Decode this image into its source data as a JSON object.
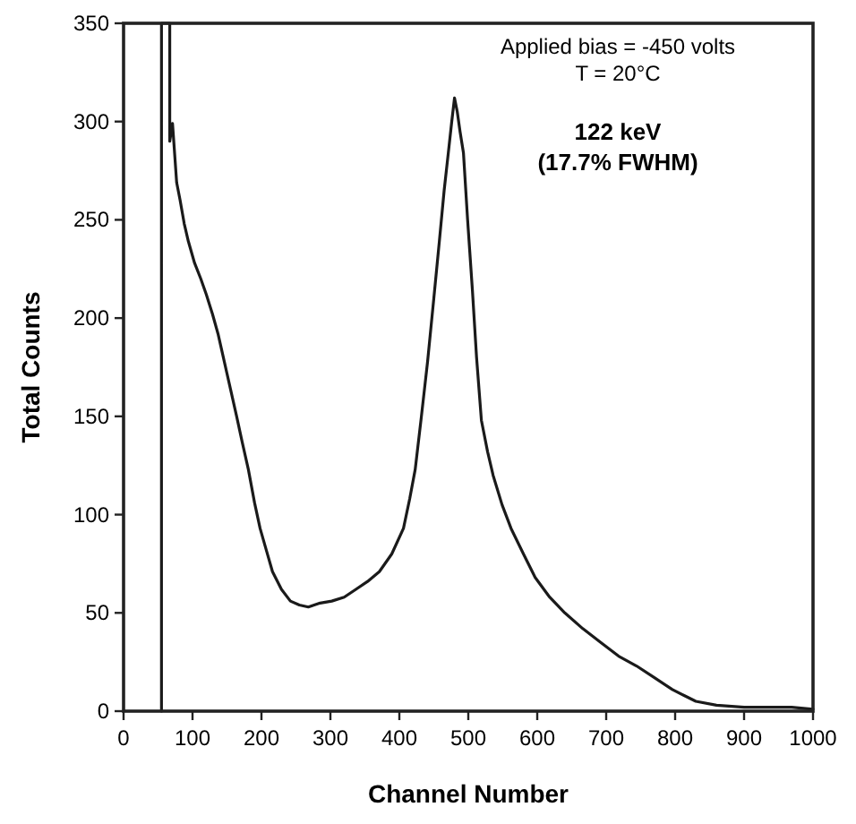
{
  "chart_data": {
    "type": "line",
    "xlabel": "Channel Number",
    "ylabel": "Total Counts",
    "xlim": [
      0,
      1000
    ],
    "xticks": [
      0,
      100,
      200,
      300,
      400,
      500,
      600,
      700,
      800,
      900,
      1000
    ],
    "ylim": [
      0,
      350
    ],
    "yticks": [
      0,
      50,
      100,
      150,
      200,
      250,
      300,
      350
    ],
    "grid": false,
    "marker": "none",
    "line_style": "solid",
    "annotations": [
      "Applied bias = -450 volts",
      "T = 20°C",
      "122 keV",
      "(17.7% FWHM)"
    ],
    "series": [
      {
        "color": "#1a1a1a",
        "x": [
          55,
          55,
          67,
          67,
          71,
          77,
          82,
          88,
          94,
          103,
          112,
          120,
          129,
          137,
          146,
          155,
          164,
          172,
          181,
          190,
          198,
          207,
          216,
          229,
          242,
          255,
          268,
          285,
          302,
          320,
          337,
          354,
          371,
          389,
          406,
          415,
          423,
          432,
          441,
          450,
          458,
          465,
          471,
          476,
          480,
          484,
          488,
          493,
          499,
          506,
          512,
          519,
          528,
          536,
          549,
          562,
          580,
          597,
          618,
          640,
          666,
          692,
          718,
          744,
          770,
          796,
          813,
          830,
          860,
          900,
          969,
          1000
        ],
        "values": [
          0,
          350,
          350,
          290,
          299,
          269,
          260,
          248,
          239,
          228,
          220,
          212,
          202,
          192,
          178,
          164,
          150,
          137,
          123,
          106,
          93,
          82,
          71,
          62,
          56,
          54,
          53,
          55,
          56,
          58,
          62,
          66,
          71,
          80,
          93,
          108,
          123,
          150,
          178,
          210,
          239,
          265,
          284,
          300,
          312,
          305,
          295,
          284,
          250,
          214,
          180,
          148,
          132,
          120,
          105,
          93,
          80,
          68,
          58,
          50,
          42,
          35,
          28,
          23,
          17,
          11,
          8,
          5,
          3,
          2,
          2,
          1
        ]
      }
    ]
  }
}
